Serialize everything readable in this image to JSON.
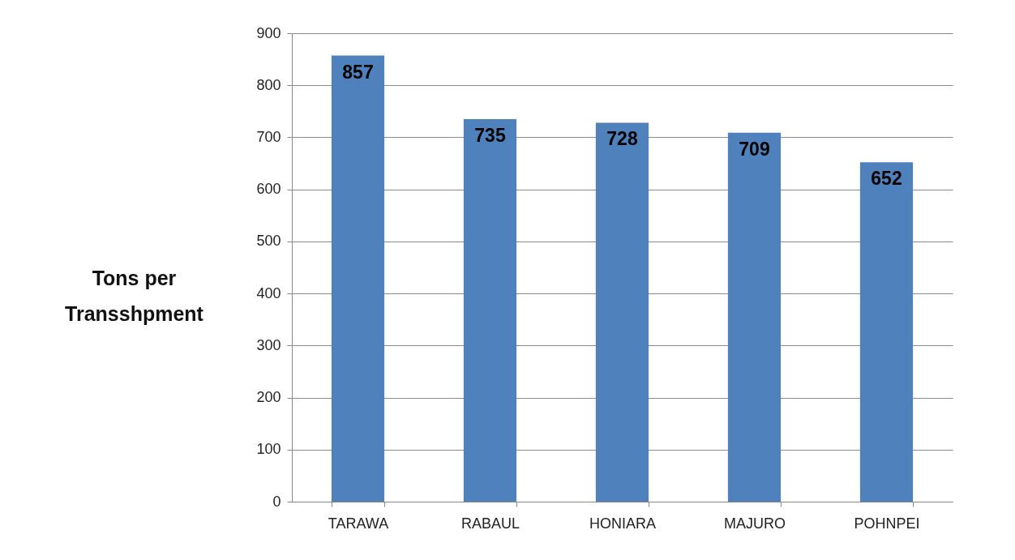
{
  "chart_data": {
    "type": "bar",
    "ylabel": "Tons per\nTransshpment",
    "categories": [
      "TARAWA",
      "RABAUL",
      "HONIARA",
      "MAJURO",
      "POHNPEI"
    ],
    "values": [
      857,
      735,
      728,
      709,
      652
    ],
    "color": "#4f81bd",
    "ylim": [
      0,
      900
    ],
    "yticks": [
      0,
      100,
      200,
      300,
      400,
      500,
      600,
      700,
      800,
      900
    ],
    "grid": "y",
    "data_labels": true
  }
}
